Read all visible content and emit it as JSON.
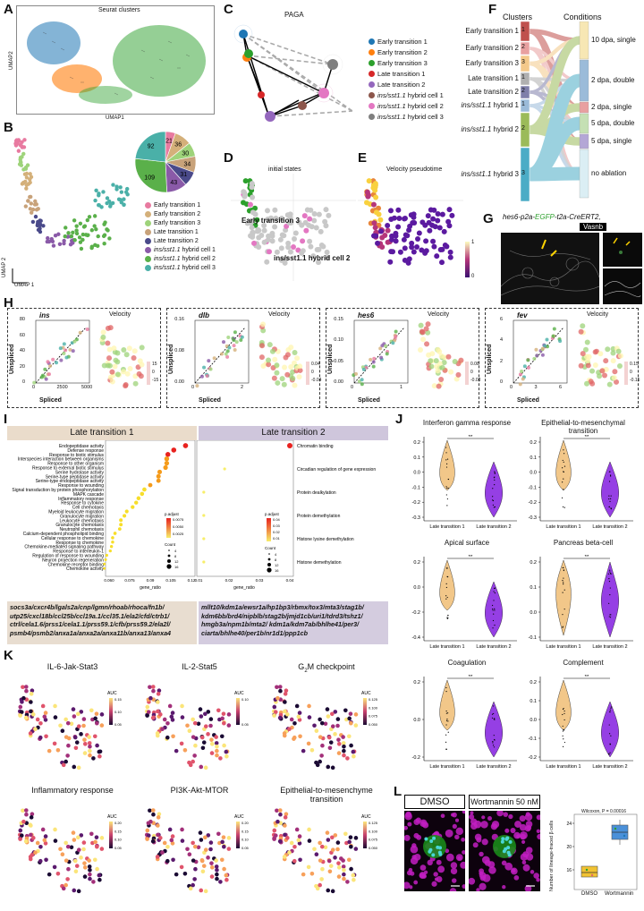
{
  "panel_letters": [
    "A",
    "B",
    "C",
    "D",
    "E",
    "F",
    "G",
    "H",
    "I",
    "J",
    "K",
    "L"
  ],
  "A": {
    "title": "Seurat clusters",
    "xlabel": "UMAP1",
    "ylabel": "UMAP2"
  },
  "B": {
    "xlabel": "UMAP 1",
    "ylabel": "UMAP 2",
    "legend": [
      "Early transition 1",
      "Early transition 2",
      "Early transition 3",
      "Late transition 1",
      "Late transition 2",
      "ins/sst1.1 hybrid cell 1",
      "ins/sst1.1 hybrid cell 2",
      "ins/sst1.1 hybrid cell 3"
    ],
    "legend_prefix": "ins/sst1.1",
    "legend_suffix": " hybrid cell ",
    "pie_values": [
      21,
      36,
      30,
      34,
      31,
      43,
      109,
      92
    ],
    "colors": [
      "#e87aa0",
      "#d4b07a",
      "#9ed37a",
      "#c8a27a",
      "#4a4a8a",
      "#8a5aa8",
      "#5ab04a",
      "#4ab0a8"
    ]
  },
  "C": {
    "title": "PAGA",
    "legend": [
      "Early transition 1",
      "Early transition 2",
      "Early transition 3",
      "Late transition 1",
      "Late transition 2",
      "ins/sst1.1 hybrid cell 1",
      "ins/sst1.1 hybrid cell 2",
      "ins/sst1.1 hybrid cell 3"
    ],
    "colors": [
      "#1f77b4",
      "#ff7f0e",
      "#2ca02c",
      "#d62728",
      "#9467bd",
      "#8c564b",
      "#e377c2",
      "#7f7f7f"
    ]
  },
  "D": {
    "title": "initial states",
    "label1": "Early transition 3",
    "label2": "ins/sst1.1 hybrid cell 2"
  },
  "E": {
    "title": "Velocity pseudotime",
    "cb_max": "1",
    "cb_min": "0"
  },
  "F": {
    "col1": "Clusters",
    "col2": "Conditions",
    "clusters": [
      "Early transition 1",
      "Early transition 2",
      "Early transition 3",
      "Late transition 1",
      "Late transition 2",
      "ins/sst1.1 hybrid 1",
      "ins/sst1.1 hybrid 2",
      "ins/sst1.1 hybrid 3"
    ],
    "cluster_nums": [
      "1",
      "2",
      "3",
      "1",
      "2",
      "1",
      "2",
      "3"
    ],
    "conditions": [
      "10 dpa, single",
      "2 dpa, double",
      "2 dpa, single",
      "5 dpa, double",
      "5 dpa, single",
      "no ablation"
    ]
  },
  "G": {
    "title_pre": "hes6-p2a-",
    "title_egfp": "EGFP",
    "title_post": "-t2a-CreERT2,",
    "stain": "Vasnb"
  },
  "H": {
    "genes": [
      "ins",
      "dlb",
      "hes6",
      "fev"
    ],
    "velocity_label": "Velocity",
    "xlabel": "Spliced",
    "ylabel": "Unspliced",
    "ins_xticks": [
      "0",
      "2500",
      "5000"
    ],
    "ins_yticks": [
      "0",
      "20",
      "40",
      "60",
      "80"
    ],
    "ins_cb": [
      "15",
      "0",
      "-15"
    ],
    "dlb_xticks": [
      "0",
      "2"
    ],
    "dlb_yticks": [
      "0.00",
      "0.08",
      "0.16"
    ],
    "dlb_cb": [
      "0.04",
      "0",
      "-0.04"
    ],
    "hes6_xticks": [
      "0",
      "1"
    ],
    "hes6_yticks": [
      "0.00",
      "0.05",
      "0.10",
      "0.15"
    ],
    "hes6_cb": [
      "0.08",
      "0",
      "-0.08"
    ],
    "fev_xticks": [
      "0",
      "3",
      "6"
    ],
    "fev_yticks": [
      "0",
      "2",
      "4",
      "6"
    ],
    "fev_cb": [
      "0.15",
      "0",
      "-0.15"
    ]
  },
  "I": {
    "header1": "Late transition 1",
    "header2": "Late transition 2",
    "terms1": [
      "Endopeptidase activity",
      "Defense response",
      "Response to biotic stimulus",
      "Interspecies interaction between organisms",
      "Response to other organism",
      "Response to external biotic stimulus",
      "Serine hydrolase activity",
      "Serine-type peptidase activity",
      "Serine-type endopeptidase activity",
      "Response to wounding",
      "Signal transduction by protein phosphorylation",
      "MAPK cascade",
      "Inflammatory response",
      "Response to cytokine",
      "Cell chemotaxis",
      "Myeloid leukocyte migration",
      "Granulocyte migration",
      "Leukocyte chemotaxis",
      "Granulocyte chemotaxis",
      "Neutrophil chemotaxis",
      "Calcium-dependent phospholipid binding",
      "Cellular response to chemokine",
      "Response to chemokine",
      "Chemokine-mediated signaling pathway",
      "Response to interleukin-1",
      "Regulation of response to wounding",
      "Neuron projection regeneration",
      "Chemokine receptor binding",
      "Chemokine activity"
    ],
    "ratios1": [
      0.12,
      0.11,
      0.105,
      0.104,
      0.104,
      0.103,
      0.098,
      0.097,
      0.097,
      0.09,
      0.085,
      0.083,
      0.08,
      0.078,
      0.075,
      0.07,
      0.068,
      0.065,
      0.065,
      0.064,
      0.06,
      0.058,
      0.058,
      0.057,
      0.056,
      0.053,
      0.052,
      0.051,
      0.051
    ],
    "terms2": [
      "Chromatin binding",
      "Circadian regulation of gene expression",
      "Protein dealkylation",
      "Protein demethylation",
      "Histone lysine demethylation",
      "Histone demethylation"
    ],
    "ratios2": [
      0.045,
      0.02,
      0.012,
      0.012,
      0.012,
      0.012
    ],
    "xlabel": "gene_ratio",
    "x1ticks": [
      "0.060",
      "0.075",
      "0.09",
      "0.105",
      "0.12"
    ],
    "x2ticks": [
      "0.01",
      "0.02",
      "0.03",
      "0.04"
    ],
    "padj_label": "p.adjust",
    "padj1": [
      "0.0075",
      "0.0050",
      "0.0025"
    ],
    "padj2": [
      "0.04",
      "0.03",
      "0.02",
      "0.01"
    ],
    "count_label": "Count",
    "count1": [
      "4",
      "8",
      "12",
      "16"
    ],
    "count2": [
      "4",
      "8",
      "12",
      "16"
    ],
    "genes1": "socs3a/cxcr4b/lgals2a/cnp/lgmn/rhoab/rhoca/fn1b/ utp25/cxcl18b/ccl25b/ccl19a.1/ccl35.1/ela2/cfd/ctrb1/ ctrl/cela1.6/prss1/cela1.1/prss59.1/cfb/prss59.2/ela2l/ psmb4/psmb2/anxa1a/anxa2a/anxa11b/anxa13/anxa4",
    "genes2": "mllt10/kdm1a/ewsr1a/hp1bp3/rbmx/tox3/mta3/stag1b/ kdm6bb/brd4/nipblb/stag2b/jmjd1cb/uri1/tdrd3/tshz1/ hmgb3a/npm1b/mta2/ kdm1a/kdm7ab/bhlhe41/per3/ ciarta/bhlhe40/per1b/nr1d1/ppp1cb"
  },
  "J": {
    "titles": [
      "Interferon gamma response",
      "Epithelial-to-mesenchymal transition",
      "Apical surface",
      "Pancreas beta-cell",
      "Coagulation",
      "Complement"
    ],
    "xcat": [
      "Late transition 1",
      "Late transition 2"
    ],
    "sig": "**",
    "colors": {
      "lt1": "#f1c27d",
      "lt2": "#8a2be2"
    },
    "yticks": [
      [
        "0.2",
        "0.1",
        "0.0",
        "-0.1",
        "-0.2",
        "-0.3"
      ],
      [
        "0.2",
        "0.1",
        "0.0",
        "-0.1",
        "-0.2",
        "-0.3"
      ],
      [
        "0.2",
        "0.0",
        "-0.2",
        "-0.4"
      ],
      [
        "0.2",
        "0.1",
        "0.0",
        "-0.1"
      ],
      [
        "0.2",
        "0.0",
        "-0.2"
      ],
      [
        "0.2",
        "0.1",
        "0.0",
        "-0.1",
        "-0.2"
      ]
    ]
  },
  "K": {
    "titles": [
      "IL-6-Jak-Stat3",
      "IL-2-Stat5",
      "G2M checkpoint",
      "Inflammatory response",
      "PI3K-Akt-MTOR",
      "Epithelial-to-mesenchyme transition"
    ],
    "g2m_pre": "G",
    "g2m_sub": "2",
    "g2m_post": "M checkpoint",
    "auc_label": "AUC",
    "cb": [
      [
        "0.15",
        "0.10",
        "0.05"
      ],
      [
        "0.10",
        "0.05"
      ],
      [
        "0.125",
        "0.100",
        "0.075",
        "0.050"
      ],
      [
        "0.20",
        "0.15",
        "0.10",
        "0.05"
      ],
      [
        "0.20",
        "0.15",
        "0.10",
        "0.05"
      ],
      [
        "0.125",
        "0.100",
        "0.075",
        "0.050"
      ]
    ]
  },
  "L": {
    "dmso": "DMSO",
    "wort": "Wortmannin 50 nM",
    "stat": "Wilcoxon, P = 0.00016",
    "ylabel": "Number of lineage-traced β cells",
    "yticks": [
      "24",
      "20",
      "16"
    ],
    "xcat": [
      "DMSO",
      "Wortmannin"
    ]
  }
}
